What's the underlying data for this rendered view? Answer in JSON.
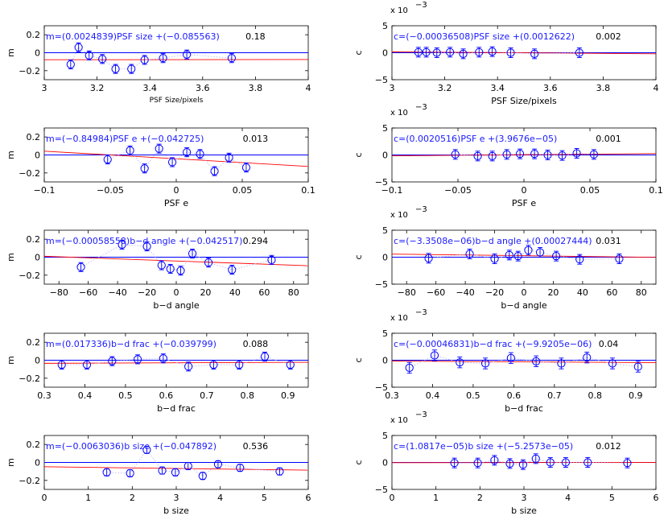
{
  "colors": {
    "marker": "#0000ff",
    "zero_line": "#0000ff",
    "fit_line": "#ff0000",
    "connector": "#b0b0ff",
    "fit_text": "#1a1aff"
  },
  "chart_data": [
    {
      "type": "scatter",
      "panel": "m-psf-size",
      "xlabel": "PSF Size/pixels",
      "ylabel": "m",
      "xlim": [
        3,
        4
      ],
      "ylim": [
        -0.3,
        0.3
      ],
      "xticks": [
        3,
        3.2,
        3.4,
        3.6,
        3.8,
        4
      ],
      "xtick_labels": [
        "3",
        "3.2",
        "3.4",
        "3.6",
        "3.8",
        "4"
      ],
      "yticks": [
        -0.2,
        0,
        0.2
      ],
      "ytick_labels": [
        "−0.2",
        "0",
        "0.2"
      ],
      "exponent": "",
      "fit_text": "m=(0.0024839)PSF size +(−0.085563)",
      "fit": {
        "slope": 0.0024839,
        "intercept": -0.085563
      },
      "corr_text": "0.18",
      "points": [
        {
          "x": 3.1,
          "y": -0.13,
          "err": 0.05
        },
        {
          "x": 3.13,
          "y": 0.06,
          "err": 0.05
        },
        {
          "x": 3.17,
          "y": -0.03,
          "err": 0.05
        },
        {
          "x": 3.22,
          "y": -0.07,
          "err": 0.05
        },
        {
          "x": 3.27,
          "y": -0.18,
          "err": 0.05
        },
        {
          "x": 3.33,
          "y": -0.18,
          "err": 0.05
        },
        {
          "x": 3.38,
          "y": -0.08,
          "err": 0.05
        },
        {
          "x": 3.45,
          "y": -0.06,
          "err": 0.05
        },
        {
          "x": 3.54,
          "y": -0.02,
          "err": 0.05
        },
        {
          "x": 3.71,
          "y": -0.06,
          "err": 0.05
        }
      ]
    },
    {
      "type": "scatter",
      "panel": "c-psf-size",
      "xlabel": "PSF Size/pixels",
      "ylabel": "c",
      "xlim": [
        3,
        4
      ],
      "ylim": [
        -5,
        5
      ],
      "xticks": [
        3,
        3.2,
        3.4,
        3.6,
        3.8,
        4
      ],
      "xtick_labels": [
        "3",
        "3.2",
        "3.4",
        "3.6",
        "3.8",
        "4"
      ],
      "yticks": [
        -5,
        0,
        5
      ],
      "ytick_labels": [
        "−5",
        "0",
        "5"
      ],
      "exponent": "x 10",
      "exponent_power": "−3",
      "fit_text": "c=(−0.00036508)PSF size +(0.0012622)",
      "fit": {
        "slope": -0.36508,
        "intercept": 1.2622
      },
      "corr_text": "0.002",
      "points": [
        {
          "x": 3.1,
          "y": 0.1,
          "err": 0.9
        },
        {
          "x": 3.13,
          "y": 0.1,
          "err": 0.9
        },
        {
          "x": 3.17,
          "y": 0.0,
          "err": 0.9
        },
        {
          "x": 3.22,
          "y": 0.1,
          "err": 0.9
        },
        {
          "x": 3.27,
          "y": -0.2,
          "err": 0.9
        },
        {
          "x": 3.33,
          "y": 0.1,
          "err": 0.9
        },
        {
          "x": 3.38,
          "y": 0.2,
          "err": 0.9
        },
        {
          "x": 3.45,
          "y": 0.0,
          "err": 0.9
        },
        {
          "x": 3.54,
          "y": -0.2,
          "err": 0.9
        },
        {
          "x": 3.71,
          "y": 0.0,
          "err": 0.9
        }
      ]
    },
    {
      "type": "scatter",
      "panel": "m-psf-e",
      "xlabel": "PSF e",
      "ylabel": "m",
      "xlim": [
        -0.1,
        0.1
      ],
      "ylim": [
        -0.3,
        0.3
      ],
      "xticks": [
        -0.1,
        -0.05,
        0,
        0.05,
        0.1
      ],
      "xtick_labels": [
        "−0.1",
        "−0.05",
        "0",
        "0.05",
        "0.1"
      ],
      "yticks": [
        -0.2,
        0,
        0.2
      ],
      "ytick_labels": [
        "−0.2",
        "0",
        "0.2"
      ],
      "exponent": "",
      "fit_text": "m=(−0.84984)PSF e +(−0.042725)",
      "fit": {
        "slope": -0.84984,
        "intercept": -0.042725
      },
      "corr_text": "0.013",
      "points": [
        {
          "x": -0.052,
          "y": -0.05,
          "err": 0.05
        },
        {
          "x": -0.035,
          "y": 0.05,
          "err": 0.05
        },
        {
          "x": -0.024,
          "y": -0.15,
          "err": 0.05
        },
        {
          "x": -0.013,
          "y": 0.07,
          "err": 0.05
        },
        {
          "x": -0.003,
          "y": -0.08,
          "err": 0.05
        },
        {
          "x": 0.008,
          "y": 0.03,
          "err": 0.05
        },
        {
          "x": 0.018,
          "y": 0.01,
          "err": 0.05
        },
        {
          "x": 0.029,
          "y": -0.18,
          "err": 0.05
        },
        {
          "x": 0.04,
          "y": -0.03,
          "err": 0.05
        },
        {
          "x": 0.053,
          "y": -0.14,
          "err": 0.05
        }
      ]
    },
    {
      "type": "scatter",
      "panel": "c-psf-e",
      "xlabel": "PSF e",
      "ylabel": "c",
      "xlim": [
        -0.1,
        0.1
      ],
      "ylim": [
        -5,
        5
      ],
      "xticks": [
        -0.1,
        -0.05,
        0,
        0.05,
        0.1
      ],
      "xtick_labels": [
        "−0.1",
        "−0.05",
        "0",
        "0.05",
        "0.1"
      ],
      "yticks": [
        -5,
        0,
        5
      ],
      "ytick_labels": [
        "−5",
        "0",
        "5"
      ],
      "exponent": "x 10",
      "exponent_power": "−3",
      "fit_text": "c=(0.0020516)PSF e +(3.9676e−05)",
      "fit": {
        "slope": 2.0516,
        "intercept": 0.039676
      },
      "corr_text": "0.001",
      "points": [
        {
          "x": -0.052,
          "y": 0.1,
          "err": 0.9
        },
        {
          "x": -0.035,
          "y": -0.2,
          "err": 0.9
        },
        {
          "x": -0.024,
          "y": -0.2,
          "err": 0.9
        },
        {
          "x": -0.013,
          "y": 0.1,
          "err": 0.9
        },
        {
          "x": -0.003,
          "y": 0.2,
          "err": 0.9
        },
        {
          "x": 0.008,
          "y": 0.2,
          "err": 0.9
        },
        {
          "x": 0.018,
          "y": 0.0,
          "err": 0.9
        },
        {
          "x": 0.029,
          "y": -0.1,
          "err": 0.9
        },
        {
          "x": 0.04,
          "y": 0.3,
          "err": 0.9
        },
        {
          "x": 0.053,
          "y": 0.1,
          "err": 0.9
        }
      ]
    },
    {
      "type": "scatter",
      "panel": "m-bd-angle",
      "xlabel": "b−d angle",
      "ylabel": "m",
      "xlim": [
        -90,
        90
      ],
      "ylim": [
        -0.3,
        0.3
      ],
      "xticks": [
        -80,
        -60,
        -40,
        -20,
        0,
        20,
        40,
        60,
        80
      ],
      "xtick_labels": [
        "−80",
        "−60",
        "−40",
        "−20",
        "0",
        "20",
        "40",
        "60",
        "80"
      ],
      "yticks": [
        -0.2,
        0,
        0.2
      ],
      "ytick_labels": [
        "−0.2",
        "0",
        "0.2"
      ],
      "exponent": "",
      "fit_text": "m=(−0.00058558)b−d angle +(−0.042517)",
      "fit": {
        "slope": -0.00058558,
        "intercept": -0.042517
      },
      "corr_text": "0.294",
      "points": [
        {
          "x": -65,
          "y": -0.11,
          "err": 0.05
        },
        {
          "x": -37,
          "y": 0.14,
          "err": 0.05
        },
        {
          "x": -20,
          "y": 0.12,
          "err": 0.05
        },
        {
          "x": -10,
          "y": -0.09,
          "err": 0.05
        },
        {
          "x": -4,
          "y": -0.13,
          "err": 0.05
        },
        {
          "x": 3,
          "y": -0.15,
          "err": 0.05
        },
        {
          "x": 11,
          "y": 0.04,
          "err": 0.05
        },
        {
          "x": 22,
          "y": -0.06,
          "err": 0.05
        },
        {
          "x": 38,
          "y": -0.14,
          "err": 0.05
        },
        {
          "x": 65,
          "y": -0.03,
          "err": 0.05
        }
      ]
    },
    {
      "type": "scatter",
      "panel": "c-bd-angle",
      "xlabel": "b−d angle",
      "ylabel": "c",
      "xlim": [
        -90,
        90
      ],
      "ylim": [
        -5,
        5
      ],
      "xticks": [
        -80,
        -60,
        -40,
        -20,
        0,
        20,
        40,
        60,
        80
      ],
      "xtick_labels": [
        "−80",
        "−60",
        "−40",
        "−20",
        "0",
        "20",
        "40",
        "60",
        "80"
      ],
      "yticks": [
        -5,
        0,
        5
      ],
      "ytick_labels": [
        "−5",
        "0",
        "5"
      ],
      "exponent": "x 10",
      "exponent_power": "−3",
      "fit_text": "c=(−3.3508e−06)b−d angle +(0.00027444)",
      "fit": {
        "slope": -0.0033508,
        "intercept": 0.27444
      },
      "corr_text": "0.031",
      "points": [
        {
          "x": -65,
          "y": -0.2,
          "err": 0.9
        },
        {
          "x": -37,
          "y": 0.6,
          "err": 0.9
        },
        {
          "x": -20,
          "y": -0.3,
          "err": 0.9
        },
        {
          "x": -10,
          "y": 0.4,
          "err": 0.9
        },
        {
          "x": -4,
          "y": 0.2,
          "err": 0.9
        },
        {
          "x": 3,
          "y": 1.3,
          "err": 0.9
        },
        {
          "x": 11,
          "y": 0.9,
          "err": 0.9
        },
        {
          "x": 22,
          "y": 0.2,
          "err": 0.9
        },
        {
          "x": 38,
          "y": -0.4,
          "err": 0.9
        },
        {
          "x": 65,
          "y": -0.3,
          "err": 0.9
        }
      ]
    },
    {
      "type": "scatter",
      "panel": "m-bd-frac",
      "xlabel": "b−d frac",
      "ylabel": "m",
      "xlim": [
        0.3,
        0.95
      ],
      "ylim": [
        -0.3,
        0.3
      ],
      "xticks": [
        0.3,
        0.4,
        0.5,
        0.6,
        0.7,
        0.8,
        0.9
      ],
      "xtick_labels": [
        "0.3",
        "0.4",
        "0.5",
        "0.6",
        "0.7",
        "0.8",
        "0.9"
      ],
      "yticks": [
        -0.2,
        0,
        0.2
      ],
      "ytick_labels": [
        "−0.2",
        "0",
        "0.2"
      ],
      "exponent": "",
      "fit_text": "m=(0.017336)b−d frac +(−0.039799)",
      "fit": {
        "slope": 0.017336,
        "intercept": -0.039799
      },
      "corr_text": "0.088",
      "points": [
        {
          "x": 0.343,
          "y": -0.05,
          "err": 0.05
        },
        {
          "x": 0.405,
          "y": -0.05,
          "err": 0.05
        },
        {
          "x": 0.467,
          "y": -0.01,
          "err": 0.05
        },
        {
          "x": 0.53,
          "y": 0.01,
          "err": 0.05
        },
        {
          "x": 0.593,
          "y": 0.02,
          "err": 0.05
        },
        {
          "x": 0.655,
          "y": -0.07,
          "err": 0.05
        },
        {
          "x": 0.717,
          "y": -0.05,
          "err": 0.05
        },
        {
          "x": 0.78,
          "y": -0.05,
          "err": 0.05
        },
        {
          "x": 0.843,
          "y": 0.04,
          "err": 0.05
        },
        {
          "x": 0.906,
          "y": -0.05,
          "err": 0.05
        }
      ]
    },
    {
      "type": "scatter",
      "panel": "c-bd-frac",
      "xlabel": "b−d frac",
      "ylabel": "c",
      "xlim": [
        0.3,
        0.95
      ],
      "ylim": [
        -5,
        5
      ],
      "xticks": [
        0.3,
        0.4,
        0.5,
        0.6,
        0.7,
        0.8,
        0.9
      ],
      "xtick_labels": [
        "0.3",
        "0.4",
        "0.5",
        "0.6",
        "0.7",
        "0.8",
        "0.9"
      ],
      "yticks": [
        -5,
        0,
        5
      ],
      "ytick_labels": [
        "−5",
        "0",
        "5"
      ],
      "exponent": "x 10",
      "exponent_power": "−3",
      "fit_text": "c=(−0.00046831)b−d frac +(−9.9205e−06)",
      "fit": {
        "slope": -0.46831,
        "intercept": -0.0099205
      },
      "corr_text": "0.04",
      "points": [
        {
          "x": 0.343,
          "y": -1.4,
          "err": 1.0
        },
        {
          "x": 0.405,
          "y": 0.9,
          "err": 1.0
        },
        {
          "x": 0.467,
          "y": -0.4,
          "err": 1.0
        },
        {
          "x": 0.53,
          "y": -0.6,
          "err": 1.0
        },
        {
          "x": 0.593,
          "y": 0.4,
          "err": 1.0
        },
        {
          "x": 0.655,
          "y": -0.2,
          "err": 1.0
        },
        {
          "x": 0.717,
          "y": -0.6,
          "err": 1.0
        },
        {
          "x": 0.78,
          "y": 0.5,
          "err": 1.0
        },
        {
          "x": 0.843,
          "y": -0.6,
          "err": 1.0
        },
        {
          "x": 0.906,
          "y": -1.2,
          "err": 1.0
        }
      ]
    },
    {
      "type": "scatter",
      "panel": "m-b-size",
      "xlabel": "b size",
      "ylabel": "m",
      "xlim": [
        0,
        6
      ],
      "ylim": [
        -0.3,
        0.3
      ],
      "xticks": [
        0,
        1,
        2,
        3,
        4,
        5,
        6
      ],
      "xtick_labels": [
        "0",
        "1",
        "2",
        "3",
        "4",
        "5",
        "6"
      ],
      "yticks": [
        -0.2,
        0,
        0.2
      ],
      "ytick_labels": [
        "−0.2",
        "0",
        "0.2"
      ],
      "exponent": "",
      "fit_text": "m=(−0.0063036)b size +(−0.047892)",
      "fit": {
        "slope": -0.0063036,
        "intercept": -0.047892
      },
      "corr_text": "0.536",
      "points": [
        {
          "x": 1.42,
          "y": -0.11,
          "err": 0.04
        },
        {
          "x": 1.95,
          "y": -0.12,
          "err": 0.04
        },
        {
          "x": 2.33,
          "y": 0.14,
          "err": 0.04
        },
        {
          "x": 2.68,
          "y": -0.09,
          "err": 0.04
        },
        {
          "x": 2.98,
          "y": -0.11,
          "err": 0.04
        },
        {
          "x": 3.27,
          "y": -0.04,
          "err": 0.04
        },
        {
          "x": 3.6,
          "y": -0.15,
          "err": 0.04
        },
        {
          "x": 3.95,
          "y": -0.02,
          "err": 0.04
        },
        {
          "x": 4.45,
          "y": -0.06,
          "err": 0.04
        },
        {
          "x": 5.35,
          "y": -0.1,
          "err": 0.04
        }
      ]
    },
    {
      "type": "scatter",
      "panel": "c-b-size",
      "xlabel": "b size",
      "ylabel": "c",
      "xlim": [
        0,
        6
      ],
      "ylim": [
        -5,
        5
      ],
      "xticks": [
        0,
        1,
        2,
        3,
        4,
        5,
        6
      ],
      "xtick_labels": [
        "0",
        "1",
        "2",
        "3",
        "4",
        "5",
        "6"
      ],
      "yticks": [
        -5,
        0,
        5
      ],
      "ytick_labels": [
        "−5",
        "0",
        "5"
      ],
      "exponent": "x 10",
      "exponent_power": "−3",
      "fit_text": "c=(1.0817e−05)b size +(−5.2573e−05)",
      "fit": {
        "slope": 0.010817,
        "intercept": -0.052573
      },
      "corr_text": "0.012",
      "points": [
        {
          "x": 1.42,
          "y": -0.1,
          "err": 0.9
        },
        {
          "x": 1.95,
          "y": -0.1,
          "err": 0.9
        },
        {
          "x": 2.33,
          "y": 0.4,
          "err": 0.9
        },
        {
          "x": 2.68,
          "y": -0.2,
          "err": 0.9
        },
        {
          "x": 2.98,
          "y": -0.4,
          "err": 0.9
        },
        {
          "x": 3.27,
          "y": 0.7,
          "err": 0.9
        },
        {
          "x": 3.6,
          "y": 0.0,
          "err": 0.9
        },
        {
          "x": 3.95,
          "y": 0.0,
          "err": 0.9
        },
        {
          "x": 4.45,
          "y": 0.0,
          "err": 0.9
        },
        {
          "x": 5.35,
          "y": -0.1,
          "err": 0.9
        }
      ]
    }
  ]
}
